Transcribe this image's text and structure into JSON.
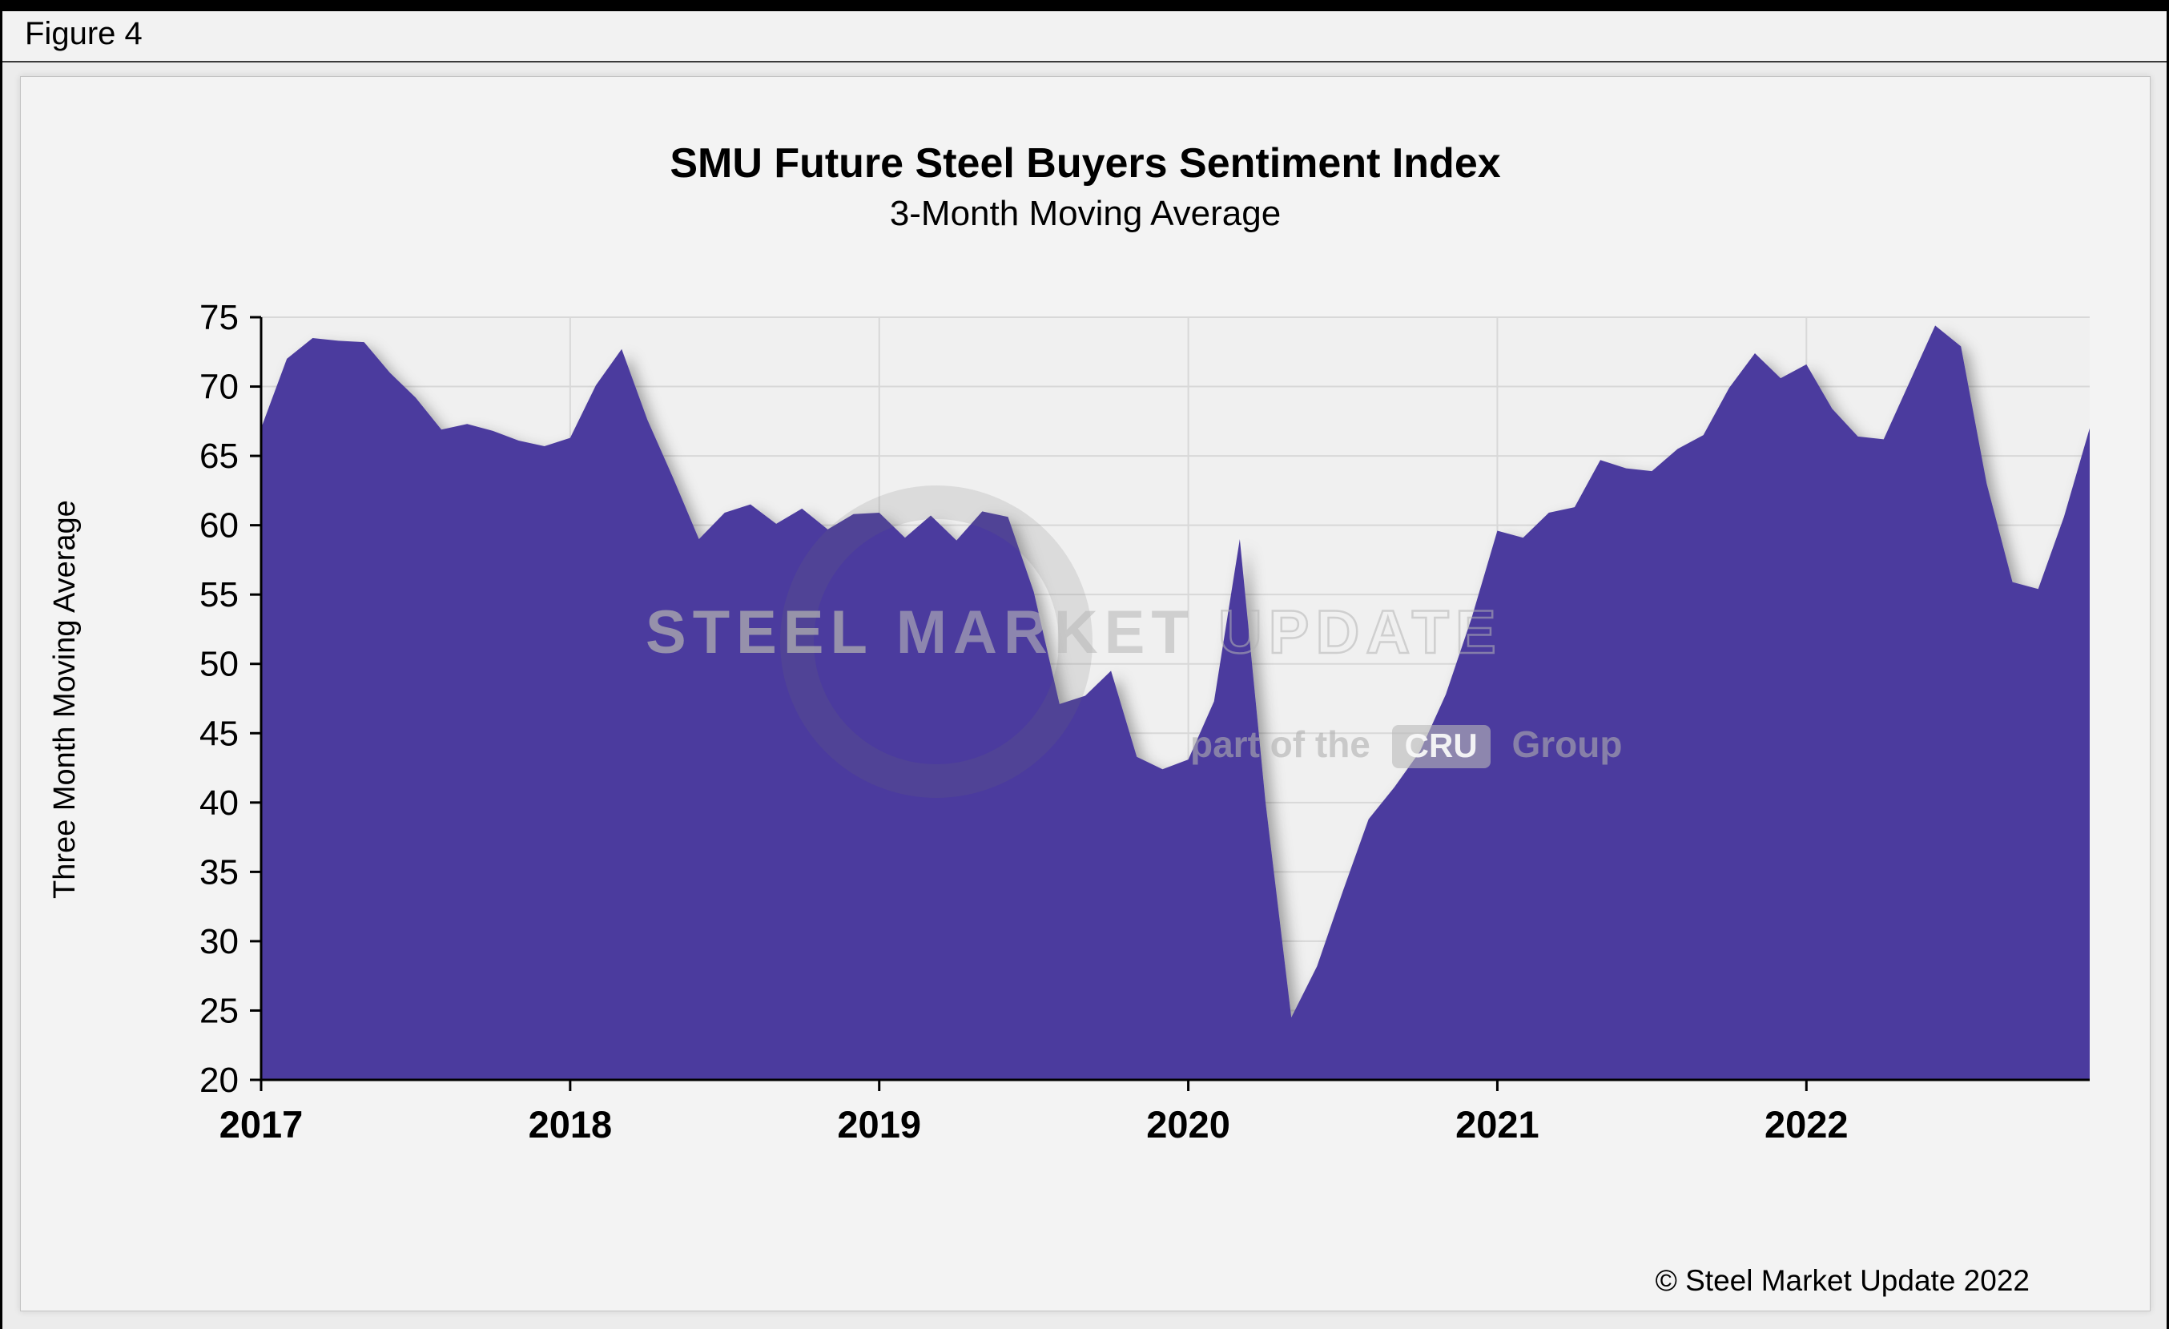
{
  "figure_label": "Figure 4",
  "title": "SMU Future Steel Buyers Sentiment Index",
  "subtitle": "3-Month Moving Average",
  "ylabel": "Three Month Moving Average",
  "copyright": "© Steel Market Update 2022",
  "watermark": {
    "steel": "STEEL",
    "market": "MARKET",
    "update": "UPDATE",
    "part_of_the": "part of the",
    "cru": "CRU",
    "group": "Group"
  },
  "colors": {
    "area": "#4b3b9e",
    "plot_bg": "#f0f0f0",
    "grid": "#d8d8d8",
    "axis": "#000000",
    "page_bg": "#ececec",
    "panel_bg": "#f3f3f3"
  },
  "chart_data": {
    "type": "area",
    "title": "SMU Future Steel Buyers Sentiment Index",
    "subtitle": "3-Month Moving Average",
    "xlabel": "",
    "ylabel": "Three Month Moving Average",
    "ylim": [
      20,
      75
    ],
    "ytick_step": 5,
    "grid": true,
    "legend": false,
    "x_start": "2017-01",
    "x_end": "2022-12",
    "year_labels": [
      "2017",
      "2018",
      "2019",
      "2020",
      "2021",
      "2022"
    ],
    "series_name": "3-Month Moving Average of SMU Future Steel Buyers Sentiment",
    "values_monthly": [
      67.0,
      72.0,
      73.5,
      73.3,
      73.2,
      71.0,
      69.2,
      66.9,
      67.3,
      66.8,
      66.1,
      65.7,
      66.3,
      70.1,
      72.7,
      67.6,
      63.4,
      59.0,
      60.9,
      61.5,
      60.1,
      61.2,
      59.7,
      60.8,
      60.9,
      59.1,
      60.7,
      58.9,
      61.0,
      60.6,
      55.2,
      47.1,
      47.7,
      49.5,
      43.3,
      42.4,
      43.1,
      47.3,
      59.0,
      40.0,
      24.5,
      28.2,
      33.6,
      38.8,
      41.1,
      43.7,
      47.8,
      53.3,
      59.6,
      59.1,
      60.9,
      61.3,
      64.7,
      64.1,
      63.9,
      65.5,
      66.5,
      69.9,
      72.4,
      70.6,
      71.6,
      68.4,
      66.4,
      66.2,
      70.3,
      74.4,
      72.9,
      63.0,
      55.9,
      55.4,
      60.6,
      67.0
    ]
  }
}
